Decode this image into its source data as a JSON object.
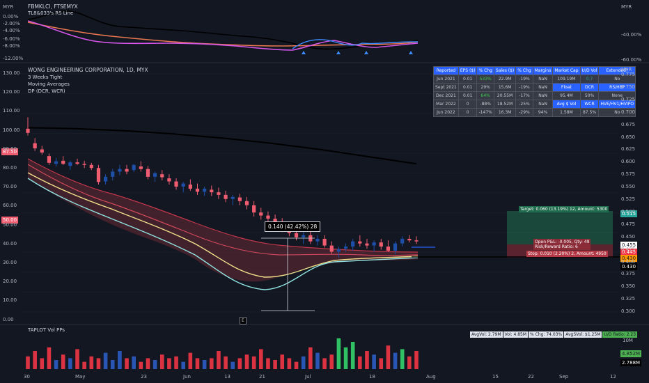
{
  "colors": {
    "bg": "#131722",
    "up": "#1e4fa8",
    "down": "#f05c70",
    "grid": "#1f2330",
    "text": "#b2b5be",
    "ma200": "#000000",
    "ma_red": "#c0364a",
    "ma_yellow": "#f2e08a",
    "ma_cyan": "#8fe3e0",
    "rs_magenta": "#d455e8",
    "rs_orange": "#e8764f",
    "rs_blue": "#3d8bff",
    "target_fill": "#1f6b4e",
    "stop_fill": "#8a2b37",
    "vol_green": "#33d46a",
    "vol_red": "#f23645",
    "vol_blue": "#2c5cc5"
  },
  "top_pane": {
    "title": "FBMKLCI, FTSEMYX",
    "subtitle": "TL8&033's RS Line",
    "left_ticks": [
      "MYR",
      "0.00%",
      "-2.00%",
      "-4.00%",
      "-6.00%",
      "-8.00%",
      "-12.00%"
    ],
    "right_ticks": [
      "MYR",
      "-40.00%",
      "-60.00%"
    ]
  },
  "main_pane": {
    "title": "WONG ENGINEERING CORPORATION, 1D, MYX",
    "indicators": [
      "3 Weeks Tight",
      "Moving Averages",
      "DP (DCR, WCR)"
    ],
    "left_ticks": [
      "130.00",
      "120.00",
      "110.00",
      "100.00",
      "90.00",
      "80.00",
      "70.00",
      "60.00",
      "50.00",
      "40.00",
      "30.00",
      "20.00",
      "10.00",
      "0.00"
    ],
    "left_badges": [
      {
        "text": "87.50",
        "color": "#f05c70"
      },
      {
        "text": "50.00",
        "color": "#f05c70"
      }
    ],
    "right_ticks": [
      "MYR",
      "0.775",
      "0.750",
      "0.725",
      "0.700",
      "0.675",
      "0.650",
      "0.625",
      "0.600",
      "0.575",
      "0.550",
      "0.525",
      "0.500",
      "0.475",
      "0.450",
      "0.425",
      "0.400",
      "0.375",
      "0.350",
      "0.325",
      "0.300"
    ],
    "right_badges": [
      {
        "text": "0.515",
        "bg": "#26a69a",
        "fg": "#ffffff"
      },
      {
        "text": "0.455",
        "bg": "#ffffff",
        "fg": "#131722"
      },
      {
        "text": "0.445",
        "bg": "#f23645",
        "fg": "#ffffff"
      },
      {
        "text": "0.430",
        "bg": "#ff9800",
        "fg": "#131722"
      },
      {
        "text": "0.430",
        "bg": "#000000",
        "fg": "#ffffff"
      }
    ],
    "measure_label": "0.140 (42.42%) 28",
    "earnings_marker": "E",
    "position_tool": {
      "target": "Target: 0.060 (13.19%) 12, Amount: 5300",
      "open_pnl": "Open P&L: -0.005, Qty: 49",
      "rr": "Risk/Reward Ratio: 6",
      "stop": "Stop: 0.010 (2.20%) 2, Amount: 4950"
    }
  },
  "fundamentals": {
    "headers": [
      "Reported",
      "EPS ($)",
      "% Chg",
      "Sales ($)",
      "% Chg",
      "Margins",
      "Market Cap",
      "U/D Vol",
      "Extended?"
    ],
    "rows": [
      [
        "Jun 2021",
        "0.01",
        "533%",
        "22.9M",
        "-19%",
        "NaN",
        "109.19M",
        "0.7",
        "No"
      ],
      [
        "Sept 2021",
        "0.01",
        "29%",
        "15.6M",
        "-19%",
        "NaN",
        "Float",
        "DCR",
        "RS/HBP"
      ],
      [
        "Dec 2021",
        "0.01",
        "64%",
        "20.55M",
        "-17%",
        "NaN",
        "95.4M",
        "50%",
        "None"
      ],
      [
        "Mar 2022",
        "0",
        "-88%",
        "18.52M",
        "-25%",
        "NaN",
        "Avg $ Vol",
        "WCR",
        "HVE/HV1/HVIPO"
      ],
      [
        "Jun 2022",
        "0",
        "-147%",
        "16.3M",
        "-29%",
        "94%",
        "1.58M",
        "87.5%",
        "No"
      ]
    ]
  },
  "volume_pane": {
    "title": "TAPLOT Vol PPs",
    "stats": [
      "AvgVol: 2.79M",
      "Vol: 4.85M",
      "% Chg: 74.03%",
      "AvgSVol: $1.25M",
      "U/D Ratio: 2.23"
    ],
    "right_ticks": [
      "10M"
    ],
    "right_badges": [
      {
        "text": "4.852M",
        "bg": "#4caf50",
        "fg": "#131722"
      },
      {
        "text": "2.788M",
        "bg": "#000000",
        "fg": "#ffffff"
      }
    ]
  },
  "x_axis": {
    "labels": [
      "30",
      "May",
      "23",
      "Jun",
      "13",
      "21",
      "Jul",
      "18",
      "Aug",
      "15",
      "22",
      "Sep",
      "12"
    ]
  },
  "chart_data": {
    "type": "candlestick",
    "title": "WONG ENGINEERING CORPORATION, 1D, MYX",
    "ylim": [
      0.3,
      0.785
    ],
    "ohlc": [
      [
        0.668,
        0.69,
        0.655,
        0.66
      ],
      [
        0.64,
        0.65,
        0.625,
        0.63
      ],
      [
        0.628,
        0.635,
        0.618,
        0.622
      ],
      [
        0.615,
        0.62,
        0.598,
        0.602
      ],
      [
        0.6,
        0.612,
        0.595,
        0.605
      ],
      [
        0.606,
        0.615,
        0.598,
        0.6
      ],
      [
        0.596,
        0.606,
        0.588,
        0.603
      ],
      [
        0.603,
        0.61,
        0.598,
        0.6
      ],
      [
        0.6,
        0.606,
        0.592,
        0.598
      ],
      [
        0.598,
        0.602,
        0.588,
        0.592
      ],
      [
        0.592,
        0.598,
        0.56,
        0.565
      ],
      [
        0.566,
        0.58,
        0.56,
        0.575
      ],
      [
        0.575,
        0.59,
        0.568,
        0.585
      ],
      [
        0.585,
        0.598,
        0.578,
        0.59
      ],
      [
        0.59,
        0.598,
        0.58,
        0.585
      ],
      [
        0.588,
        0.6,
        0.584,
        0.598
      ],
      [
        0.595,
        0.605,
        0.585,
        0.59
      ],
      [
        0.59,
        0.596,
        0.57,
        0.575
      ],
      [
        0.575,
        0.585,
        0.565,
        0.582
      ],
      [
        0.58,
        0.588,
        0.568,
        0.574
      ],
      [
        0.572,
        0.58,
        0.56,
        0.566
      ],
      [
        0.566,
        0.572,
        0.55,
        0.556
      ],
      [
        0.556,
        0.565,
        0.545,
        0.562
      ],
      [
        0.56,
        0.57,
        0.548,
        0.552
      ],
      [
        0.552,
        0.562,
        0.54,
        0.546
      ],
      [
        0.546,
        0.556,
        0.538,
        0.552
      ],
      [
        0.55,
        0.558,
        0.538,
        0.545
      ],
      [
        0.545,
        0.554,
        0.532,
        0.54
      ],
      [
        0.54,
        0.548,
        0.526,
        0.532
      ],
      [
        0.532,
        0.54,
        0.52,
        0.536
      ],
      [
        0.535,
        0.542,
        0.52,
        0.528
      ],
      [
        0.528,
        0.536,
        0.512,
        0.52
      ],
      [
        0.52,
        0.528,
        0.498,
        0.506
      ],
      [
        0.506,
        0.515,
        0.492,
        0.5
      ],
      [
        0.5,
        0.508,
        0.488,
        0.494
      ],
      [
        0.494,
        0.502,
        0.48,
        0.486
      ],
      [
        0.486,
        0.495,
        0.468,
        0.474
      ],
      [
        0.474,
        0.482,
        0.46,
        0.466
      ],
      [
        0.466,
        0.474,
        0.452,
        0.458
      ],
      [
        0.458,
        0.468,
        0.445,
        0.462
      ],
      [
        0.462,
        0.47,
        0.445,
        0.45
      ],
      [
        0.45,
        0.462,
        0.442,
        0.455
      ],
      [
        0.455,
        0.462,
        0.438,
        0.442
      ],
      [
        0.442,
        0.45,
        0.425,
        0.43
      ],
      [
        0.43,
        0.44,
        0.418,
        0.435
      ],
      [
        0.436,
        0.446,
        0.43,
        0.44
      ],
      [
        0.44,
        0.455,
        0.432,
        0.45
      ],
      [
        0.45,
        0.462,
        0.44,
        0.446
      ],
      [
        0.446,
        0.455,
        0.436,
        0.442
      ],
      [
        0.442,
        0.452,
        0.43,
        0.448
      ],
      [
        0.448,
        0.455,
        0.434,
        0.44
      ],
      [
        0.44,
        0.452,
        0.43,
        0.432
      ],
      [
        0.432,
        0.45,
        0.425,
        0.446
      ],
      [
        0.446,
        0.46,
        0.44,
        0.455
      ],
      [
        0.455,
        0.462,
        0.448,
        0.452
      ],
      [
        0.452,
        0.46,
        0.445,
        0.45
      ]
    ],
    "ma200": [
      0.67,
      0.668,
      0.664,
      0.658,
      0.65,
      0.64,
      0.628,
      0.614,
      0.6
    ]
  }
}
